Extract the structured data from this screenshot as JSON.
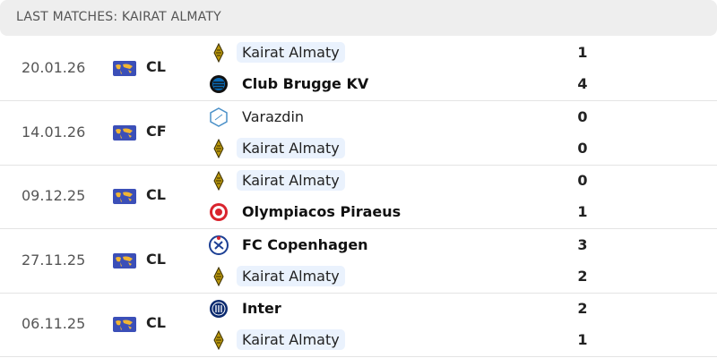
{
  "header": {
    "title": "LAST MATCHES: KAIRAT ALMATY"
  },
  "colors": {
    "highlight": "#eaf2fd",
    "header_bg": "#eeeeee",
    "competition_flag": "#3b4fb8"
  },
  "matches": [
    {
      "date": "20.01.26",
      "competition": "CL",
      "home": {
        "name": "Kairat Almaty",
        "score": "1",
        "logo": "kairat-logo",
        "highlight": true,
        "winner": false
      },
      "away": {
        "name": "Club Brugge KV",
        "score": "4",
        "logo": "club-brugge-logo",
        "highlight": false,
        "winner": true
      }
    },
    {
      "date": "14.01.26",
      "competition": "CF",
      "home": {
        "name": "Varazdin",
        "score": "0",
        "logo": "varazdin-logo",
        "highlight": false,
        "winner": false
      },
      "away": {
        "name": "Kairat Almaty",
        "score": "0",
        "logo": "kairat-logo",
        "highlight": true,
        "winner": false
      }
    },
    {
      "date": "09.12.25",
      "competition": "CL",
      "home": {
        "name": "Kairat Almaty",
        "score": "0",
        "logo": "kairat-logo",
        "highlight": true,
        "winner": false
      },
      "away": {
        "name": "Olympiacos Piraeus",
        "score": "1",
        "logo": "olympiacos-logo",
        "highlight": false,
        "winner": true
      }
    },
    {
      "date": "27.11.25",
      "competition": "CL",
      "home": {
        "name": "FC Copenhagen",
        "score": "3",
        "logo": "fc-copenhagen-logo",
        "highlight": false,
        "winner": true
      },
      "away": {
        "name": "Kairat Almaty",
        "score": "2",
        "logo": "kairat-logo",
        "highlight": true,
        "winner": false
      }
    },
    {
      "date": "06.11.25",
      "competition": "CL",
      "home": {
        "name": "Inter",
        "score": "2",
        "logo": "inter-logo",
        "highlight": false,
        "winner": true
      },
      "away": {
        "name": "Kairat Almaty",
        "score": "1",
        "logo": "kairat-logo",
        "highlight": true,
        "winner": false
      }
    }
  ]
}
